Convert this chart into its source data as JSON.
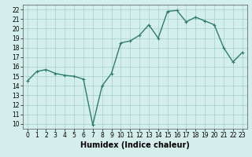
{
  "x": [
    0,
    1,
    2,
    3,
    4,
    5,
    6,
    7,
    8,
    9,
    10,
    11,
    12,
    13,
    14,
    15,
    16,
    17,
    18,
    19,
    20,
    21,
    22,
    23
  ],
  "y": [
    14.5,
    15.5,
    15.7,
    15.3,
    15.1,
    15.0,
    14.7,
    9.9,
    14.0,
    15.3,
    18.5,
    18.7,
    19.3,
    20.4,
    19.0,
    21.8,
    21.9,
    20.7,
    21.2,
    20.8,
    20.4,
    18.0,
    16.5,
    17.5
  ],
  "line_color": "#2e7d6e",
  "marker": "+",
  "marker_size": 3,
  "background_color": "#d4eeec",
  "grid_color": "#aad4d0",
  "xlabel": "Humidex (Indice chaleur)",
  "xlim": [
    -0.5,
    23.5
  ],
  "ylim": [
    9.5,
    22.5
  ],
  "yticks": [
    10,
    11,
    12,
    13,
    14,
    15,
    16,
    17,
    18,
    19,
    20,
    21,
    22
  ],
  "xticks": [
    0,
    1,
    2,
    3,
    4,
    5,
    6,
    7,
    8,
    9,
    10,
    11,
    12,
    13,
    14,
    15,
    16,
    17,
    18,
    19,
    20,
    21,
    22,
    23
  ],
  "tick_fontsize": 5.5,
  "label_fontsize": 7,
  "line_width": 1.0
}
